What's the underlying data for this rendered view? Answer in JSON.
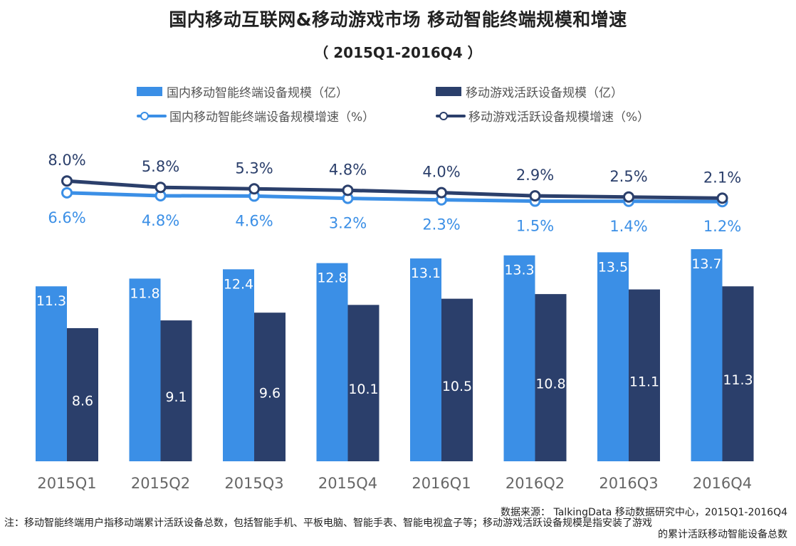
{
  "title": "国内移动互联网&移动游戏市场  移动智能终端规模和增速",
  "subtitle": "（ 2015Q1-2016Q4 ）",
  "legend": {
    "bar1": "国内移动智能终端设备规模（亿）",
    "bar2": "移动游戏活跃设备规模（亿）",
    "line1": "国内移动智能终端设备规模增速（%）",
    "line2": "移动游戏活跃设备规模增速（%）"
  },
  "colors": {
    "bar_light": "#3b8fe6",
    "bar_dark": "#2b3f6b",
    "line_light": "#3b8fe6",
    "line_dark": "#2b3f6b",
    "label_light": "#3b8fe6",
    "label_dark": "#2b3f6b"
  },
  "chart_data": {
    "type": "bar",
    "categories": [
      "2015Q1",
      "2015Q2",
      "2015Q3",
      "2015Q4",
      "2016Q1",
      "2016Q2",
      "2016Q3",
      "2016Q4"
    ],
    "series": [
      {
        "name": "国内移动智能终端设备规模（亿）",
        "type": "bar",
        "values": [
          11.3,
          11.8,
          12.4,
          12.8,
          13.1,
          13.3,
          13.5,
          13.7
        ],
        "labels": [
          "11.3",
          "11.8",
          "12.4",
          "12.8",
          "13.1",
          "13.3",
          "13.5",
          "13.7"
        ]
      },
      {
        "name": "移动游戏活跃设备规模（亿）",
        "type": "bar",
        "values": [
          8.6,
          9.1,
          9.6,
          10.1,
          10.5,
          10.8,
          11.1,
          11.3
        ],
        "labels": [
          "8.6",
          "9.1",
          "9.6",
          "10.1",
          "10.5",
          "10.8",
          "11.1",
          "11.3"
        ]
      },
      {
        "name": "国内移动智能终端设备规模增速（%）",
        "type": "line",
        "values": [
          6.6,
          4.8,
          4.6,
          3.2,
          2.3,
          1.5,
          1.4,
          1.2
        ],
        "labels": [
          "6.6%",
          "4.8%",
          "4.6%",
          "3.2%",
          "2.3%",
          "1.5%",
          "1.4%",
          "1.2%"
        ]
      },
      {
        "name": "移动游戏活跃设备规模增速（%）",
        "type": "line",
        "values": [
          8.0,
          5.8,
          5.3,
          4.8,
          4.0,
          2.9,
          2.5,
          2.1
        ],
        "labels": [
          "8.0%",
          "5.8%",
          "5.3%",
          "4.8%",
          "4.0%",
          "2.9%",
          "2.5%",
          "2.1%"
        ]
      }
    ],
    "grid": false
  },
  "source": "数据来源： TalkingData 移动数据研究中心，2015Q1-2016Q4",
  "note_line1": "注：移动智能终端用户指移动端累计活跃设备总数，包括智能手机、平板电脑、智能手表、智能电视盒子等；移动游戏活跃设备规模是指安装了游戏",
  "note_line2": "的累计活跃移动智能设备总数"
}
